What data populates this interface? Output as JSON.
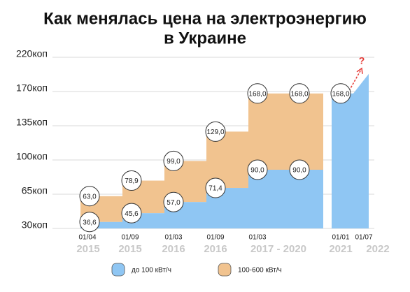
{
  "chart_data": {
    "type": "step",
    "title": "Как менялась цена на электроэнергию",
    "subtitle": "в Украине",
    "categories": [
      "01/04",
      "01/09",
      "01/03",
      "01/09",
      "01/03",
      null,
      "01/01",
      "01/07"
    ],
    "years": [
      "2015",
      "2015",
      "2016",
      "2016",
      "2017 - 2020",
      null,
      "2021",
      "2022"
    ],
    "series": [
      {
        "name": "до 100 кВт/ч",
        "color": "#8fc6f3",
        "values": [
          36.6,
          45.6,
          57.0,
          71.4,
          90.0,
          90.0,
          168.0,
          null
        ],
        "value_labels": [
          "36,6",
          "45,6",
          "57,0",
          "71,4",
          "90,0",
          "90,0",
          "168,0",
          null
        ]
      },
      {
        "name": "100-600 кВт/ч",
        "color": "#f1c38f",
        "values": [
          63.0,
          78.9,
          99.0,
          129.0,
          168.0,
          168.0,
          null,
          null
        ],
        "value_labels": [
          "63,0",
          "78,9",
          "99,0",
          "129,0",
          "168,0",
          "168,0",
          null,
          null
        ]
      }
    ],
    "annotation": "?",
    "ylim": [
      30,
      220
    ],
    "yticks": [
      {
        "value": 30,
        "label": "30коп"
      },
      {
        "value": 65,
        "label": "65коп"
      },
      {
        "value": 100,
        "label": "100коп"
      },
      {
        "value": 135,
        "label": "135коп"
      },
      {
        "value": 170,
        "label": "170коп"
      },
      {
        "value": 220,
        "label": "220коп"
      }
    ],
    "grid": true
  }
}
